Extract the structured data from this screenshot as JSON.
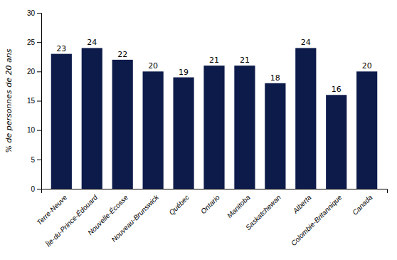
{
  "chart_data": {
    "type": "bar",
    "categories": [
      "Terre-Neuve",
      "Île-du-Prince-Édouard",
      "Nouvelle-Écosse",
      "Nouveau-Brunswick",
      "Québec",
      "Ontario",
      "Manitoba",
      "Saskatchewan",
      "Alberta",
      "Colombie-Britannique",
      "Canada"
    ],
    "values": [
      23,
      24,
      22,
      20,
      19,
      21,
      21,
      18,
      24,
      16,
      20
    ],
    "color": "#0d1b4b",
    "ylabel": "% de personnes de 20 ans",
    "ylim": [
      0,
      30
    ],
    "yticks": [
      0,
      5,
      10,
      15,
      20,
      25,
      30
    ],
    "grid": false,
    "data_labels": true
  }
}
